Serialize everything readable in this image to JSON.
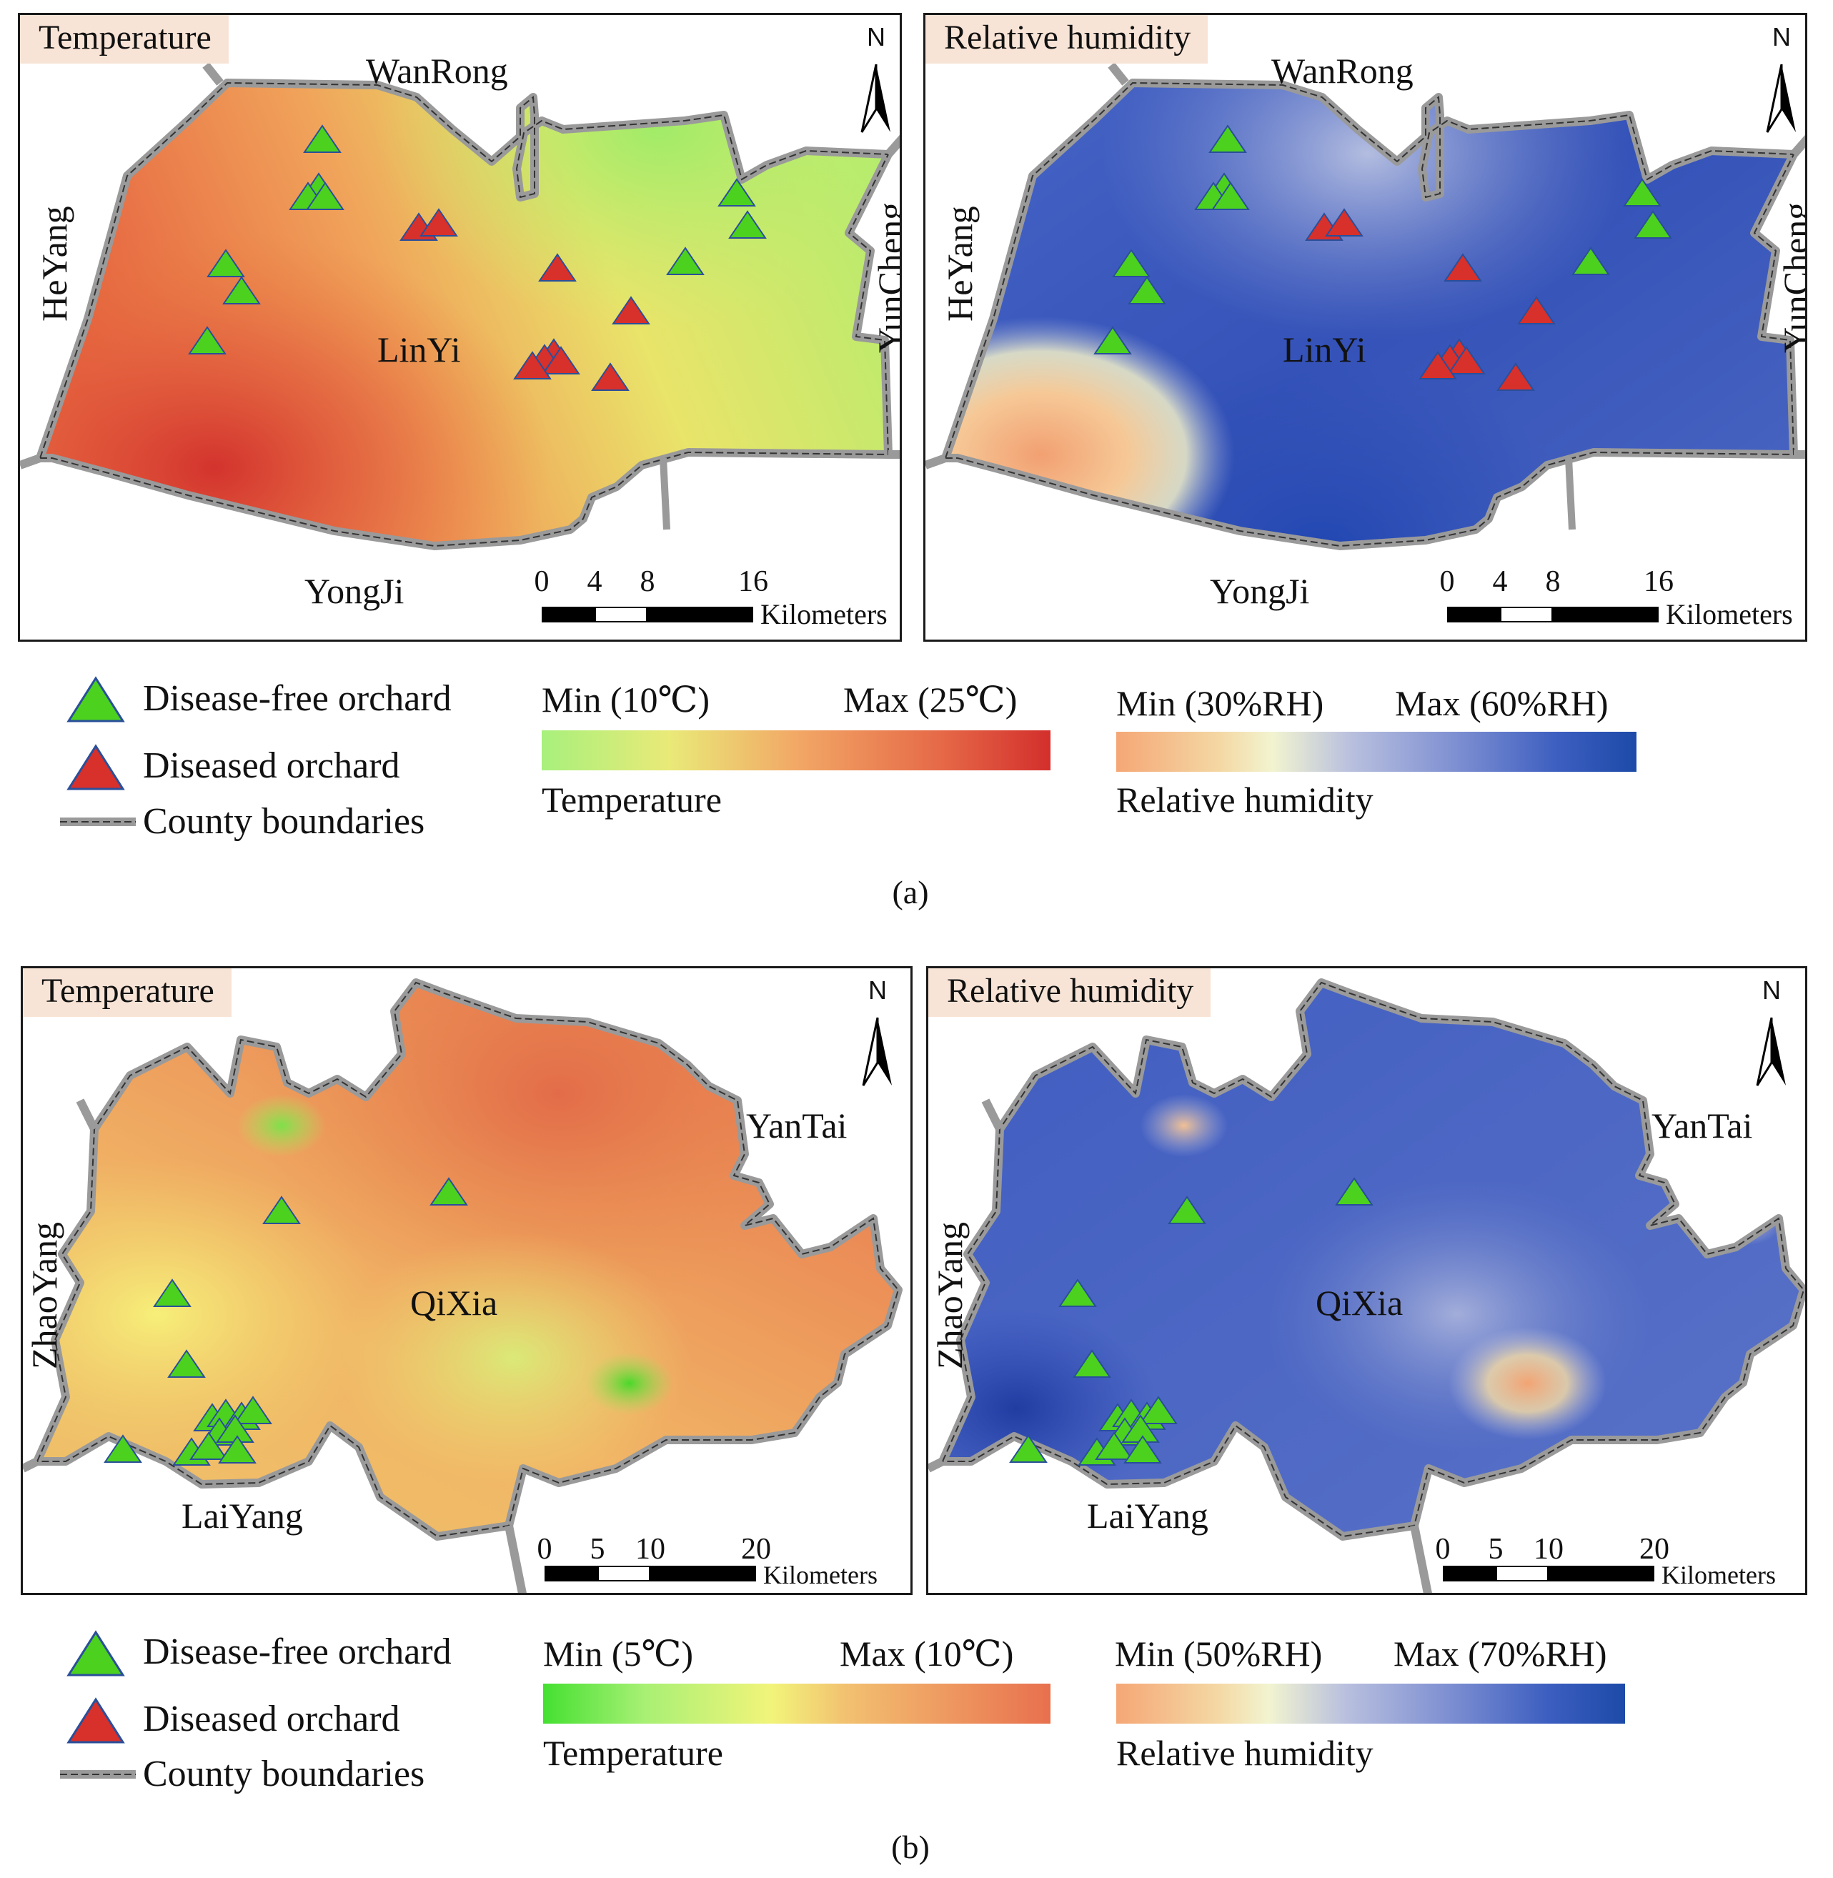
{
  "label_a": "(a)",
  "label_b": "(b)",
  "legend": {
    "disease_free": "Disease-free orchard",
    "diseased": "Diseased orchard",
    "county": "County boundaries"
  },
  "colors": {
    "disease_free": "#4cd11f",
    "diseased": "#d8302a",
    "boundary": "#9a9a9a",
    "title_bg": "#f8e4d6"
  },
  "a": {
    "temperature": {
      "title": "Temperature",
      "places": {
        "north": "WanRong",
        "south": "YongJi",
        "west": "HeYang",
        "east": "YunCheng",
        "center": "LinYi"
      },
      "scale": {
        "ticks": [
          "0",
          "4",
          "8",
          "16"
        ],
        "unit": "Kilometers"
      },
      "north_label": "N"
    },
    "humidity": {
      "title": "Relative humidity",
      "places": {
        "north": "WanRong",
        "south": "YongJi",
        "west": "HeYang",
        "east": "YunCheng",
        "center": "LinYi"
      },
      "scale": {
        "ticks": [
          "0",
          "4",
          "8",
          "16"
        ],
        "unit": "Kilometers"
      },
      "north_label": "N"
    },
    "temp_bar": {
      "min": "Min (10℃)",
      "max": "Max (25℃)",
      "name": "Temperature"
    },
    "rh_bar": {
      "min": "Min (30%RH)",
      "max": "Max (60%RH)",
      "name": "Relative humidity"
    }
  },
  "b": {
    "temperature": {
      "title": "Temperature",
      "places": {
        "north": "YanTai",
        "south": "LaiYang",
        "west": "ZhaoYang",
        "center": "QiXia"
      },
      "scale": {
        "ticks": [
          "0",
          "5",
          "10",
          "20"
        ],
        "unit": "Kilometers"
      },
      "north_label": "N"
    },
    "humidity": {
      "title": "Relative humidity",
      "places": {
        "north": "YanTai",
        "south": "LaiYang",
        "west": "ZhaoYang",
        "center": "QiXia"
      },
      "scale": {
        "ticks": [
          "0",
          "5",
          "10",
          "20"
        ],
        "unit": "Kilometers"
      },
      "north_label": "N"
    },
    "temp_bar": {
      "min": "Min (5℃)",
      "max": "Max (10℃)",
      "name": "Temperature"
    },
    "rh_bar": {
      "min": "Min (50%RH)",
      "max": "Max (70%RH)",
      "name": "Relative humidity"
    }
  }
}
